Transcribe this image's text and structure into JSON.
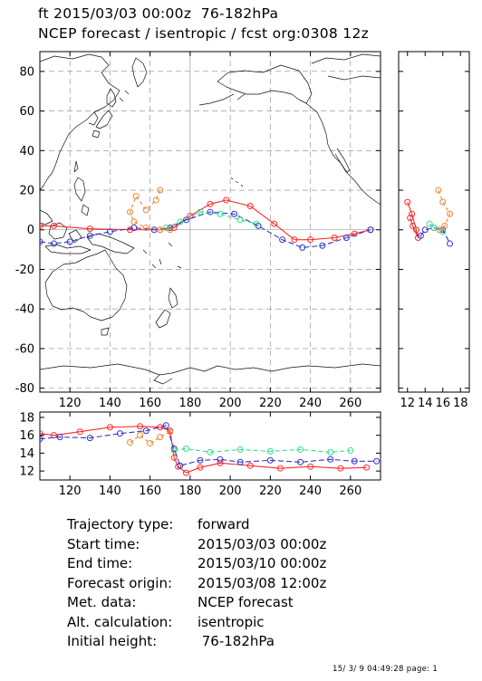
{
  "header": {
    "line1": "ft 2015/03/03 00:00z  76-182hPa",
    "line2": "NCEP forecast / isentropic / fcst org:0308 12z"
  },
  "info": [
    {
      "label": "Trajectory type:",
      "value": "forward"
    },
    {
      "label": "Start time:",
      "value": "2015/03/03 00:00z"
    },
    {
      "label": "End time:",
      "value": "2015/03/10 00:00z"
    },
    {
      "label": "Forecast origin:",
      "value": "2015/03/08 12:00z"
    },
    {
      "label": "Met. data:",
      "value": "NCEP forecast"
    },
    {
      "label": "Alt. calculation:",
      "value": "isentropic"
    },
    {
      "label": "Initial height:",
      "value": " 76-182hPa"
    }
  ],
  "footer": "15/ 3/ 9 04:49:28 page: 1",
  "colors": {
    "red": "#ff2a2a",
    "blue": "#3333cc",
    "green": "#33dd88",
    "orange": "#ee8833",
    "grid": "#888888"
  },
  "chart_data": [
    {
      "type": "line",
      "name": "map",
      "xlim": [
        105,
        275
      ],
      "ylim": [
        -82,
        90
      ],
      "x_ticks": [
        120,
        140,
        160,
        180,
        200,
        220,
        240,
        260
      ],
      "y_ticks": [
        -80,
        -60,
        -40,
        -20,
        0,
        20,
        40,
        60,
        80
      ],
      "grid": true,
      "series": [
        {
          "color": "red",
          "x": [
            105,
            112,
            130,
            150,
            165,
            172,
            180,
            190,
            198,
            210,
            222,
            232,
            240,
            252,
            262,
            270
          ],
          "y": [
            2,
            2,
            0.5,
            0,
            0,
            1,
            7,
            13,
            15,
            12,
            3,
            -5,
            -5,
            -4,
            -2,
            0
          ]
        },
        {
          "color": "blue",
          "x": [
            105,
            112,
            120,
            130,
            140,
            152,
            162,
            170,
            178,
            190,
            202,
            214,
            226,
            236,
            246,
            258,
            270
          ],
          "y": [
            -6,
            -7,
            -6,
            -3,
            -1,
            1,
            0,
            1,
            5,
            9,
            8,
            2,
            -5,
            -9,
            -8,
            -4,
            0
          ]
        },
        {
          "color": "green",
          "x": [
            168,
            175,
            185,
            195,
            205,
            213
          ],
          "y": [
            1,
            4,
            9,
            8,
            5,
            3
          ]
        },
        {
          "color": "orange",
          "x": [
            165,
            163,
            158,
            153,
            150,
            152,
            158,
            165,
            170
          ],
          "y": [
            20,
            15,
            10,
            17,
            9,
            4,
            1,
            0,
            0
          ]
        }
      ]
    },
    {
      "type": "line",
      "name": "pressure-side",
      "xlim": [
        11,
        19
      ],
      "ylim": [
        -82,
        90
      ],
      "x_ticks": [
        12,
        14,
        16,
        18
      ],
      "grid": false,
      "series": [
        {
          "color": "red",
          "x": [
            12,
            12.5,
            13,
            13.2,
            12.6,
            12.3
          ],
          "y": [
            14,
            8,
            0,
            -4,
            2,
            6
          ]
        },
        {
          "color": "blue",
          "x": [
            13.5,
            14,
            15,
            16,
            16.8
          ],
          "y": [
            -3,
            0,
            1,
            0,
            -7
          ]
        },
        {
          "color": "green",
          "x": [
            14.5,
            15,
            16
          ],
          "y": [
            3,
            1,
            -1
          ]
        },
        {
          "color": "orange",
          "x": [
            15.5,
            16,
            16.8,
            16.2,
            15.6
          ],
          "y": [
            20,
            14,
            8,
            2,
            0
          ]
        }
      ]
    },
    {
      "type": "line",
      "name": "pressure-time",
      "xlim": [
        105,
        275
      ],
      "ylim": [
        11,
        18.6
      ],
      "x_ticks": [
        120,
        140,
        160,
        180,
        200,
        220,
        240,
        260
      ],
      "y_ticks": [
        12,
        14,
        16,
        18
      ],
      "grid": false,
      "series": [
        {
          "color": "red",
          "x": [
            105,
            112,
            125,
            140,
            155,
            165,
            170,
            172,
            174,
            178,
            185,
            195,
            210,
            225,
            240,
            255,
            268
          ],
          "y": [
            16.2,
            16.0,
            16.4,
            16.9,
            17.0,
            16.9,
            16.5,
            13.5,
            12.5,
            11.8,
            12.4,
            12.9,
            12.6,
            12.3,
            12.5,
            12.3,
            12.4
          ]
        },
        {
          "color": "blue",
          "x": [
            105,
            115,
            130,
            145,
            158,
            168,
            172,
            175,
            185,
            195,
            205,
            220,
            235,
            250,
            262,
            273
          ],
          "y": [
            15.6,
            15.8,
            15.7,
            16.2,
            16.5,
            17.1,
            14.5,
            12.6,
            13.2,
            13.3,
            13.0,
            13.2,
            13.0,
            13.3,
            13.1,
            13.1
          ]
        },
        {
          "color": "green",
          "x": [
            172,
            178,
            190,
            205,
            220,
            235,
            250,
            260
          ],
          "y": [
            14.3,
            14.5,
            14.1,
            14.4,
            14.2,
            14.4,
            14.1,
            14.3
          ]
        },
        {
          "color": "orange",
          "x": [
            150,
            155,
            160,
            165,
            170
          ],
          "y": [
            15.2,
            16.0,
            15.1,
            15.8,
            16.4
          ]
        }
      ]
    }
  ]
}
